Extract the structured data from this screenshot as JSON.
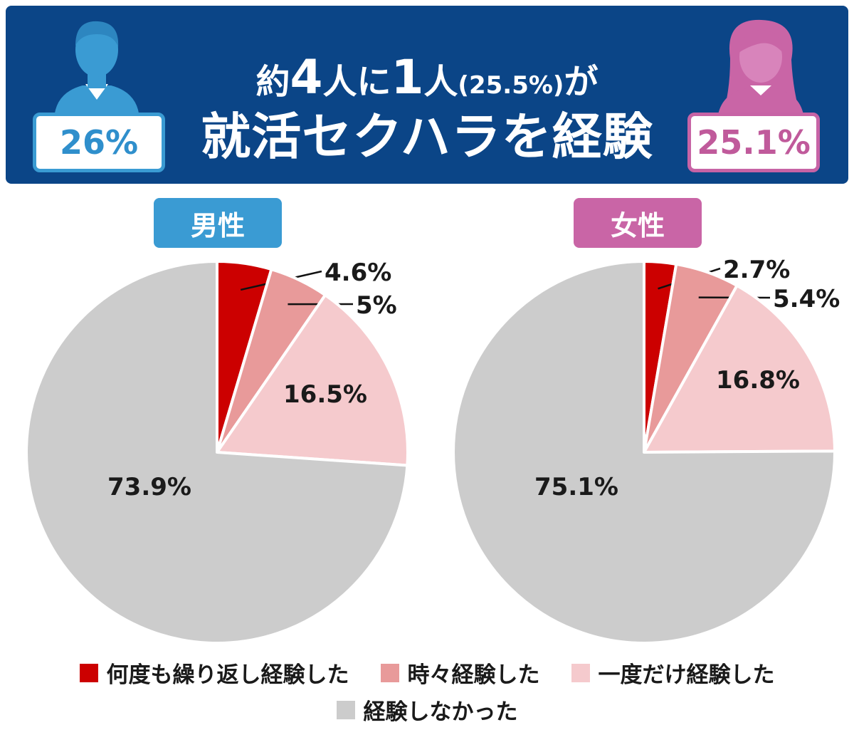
{
  "header": {
    "line1_pre": "約",
    "line1_num1": "4",
    "line1_mid": "人に",
    "line1_num2": "1",
    "line1_post": "人",
    "line1_paren": "(25.5%)",
    "line1_end": "が",
    "line2": "就活セクハラを経験",
    "male_pct": "26%",
    "female_pct": "25.1%"
  },
  "colors": {
    "banner": "#0b4587",
    "male": "#3a9bd3",
    "female": "#c965a6",
    "repeated": "#cc0000",
    "sometimes": "#e89a9a",
    "once": "#f5cacd",
    "never": "#cccccc"
  },
  "legend": [
    {
      "label": "何度も繰り返し経験した",
      "color": "#cc0000"
    },
    {
      "label": "時々経験した",
      "color": "#e89a9a"
    },
    {
      "label": "一度だけ経験した",
      "color": "#f5cacd"
    },
    {
      "label": "経験しなかった",
      "color": "#cccccc"
    }
  ],
  "chart_data": [
    {
      "type": "pie",
      "title": "男性",
      "categories": [
        "何度も繰り返し経験した",
        "時々経験した",
        "一度だけ経験した",
        "経験しなかった"
      ],
      "values": [
        4.6,
        5,
        16.5,
        73.9
      ],
      "labels": [
        "4.6%",
        "5%",
        "16.5%",
        "73.9%"
      ]
    },
    {
      "type": "pie",
      "title": "女性",
      "categories": [
        "何度も繰り返し経験した",
        "時々経験した",
        "一度だけ経験した",
        "経験しなかった"
      ],
      "values": [
        2.7,
        5.4,
        16.8,
        75.1
      ],
      "labels": [
        "2.7%",
        "5.4%",
        "16.8%",
        "75.1%"
      ]
    }
  ]
}
